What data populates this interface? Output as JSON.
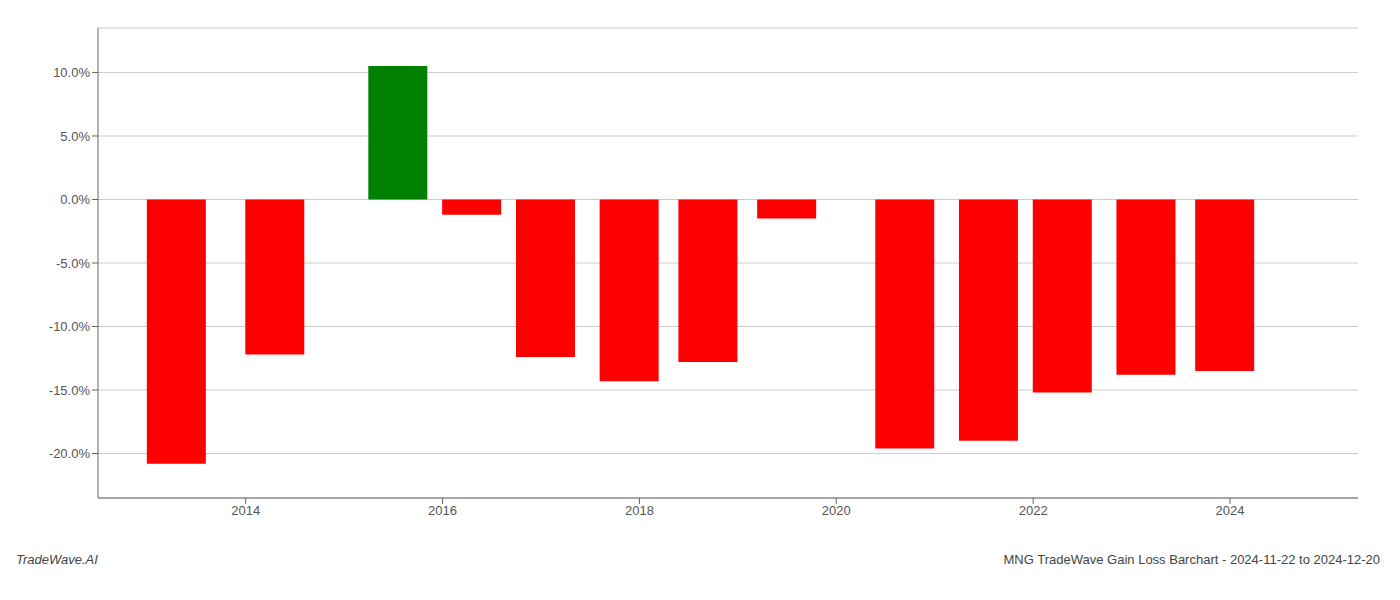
{
  "chart_data": {
    "type": "bar",
    "x": [
      2013.3,
      2014.3,
      2015.55,
      2016.3,
      2017.05,
      2017.9,
      2018.7,
      2019.5,
      2020.7,
      2021.55,
      2022.3,
      2023.15,
      2023.95
    ],
    "values": [
      -0.208,
      -0.122,
      0.105,
      -0.012,
      -0.124,
      -0.143,
      -0.128,
      -0.015,
      -0.196,
      -0.19,
      -0.152,
      -0.138,
      -0.135
    ],
    "colors": [
      "#ff0000",
      "#ff0000",
      "#008000",
      "#ff0000",
      "#ff0000",
      "#ff0000",
      "#ff0000",
      "#ff0000",
      "#ff0000",
      "#ff0000",
      "#ff0000",
      "#ff0000",
      "#ff0000"
    ],
    "xlim": [
      2012.5,
      2025.3
    ],
    "xticks": [
      2014,
      2016,
      2018,
      2020,
      2022,
      2024
    ],
    "ylim": [
      -0.235,
      0.135
    ],
    "yticks": [
      {
        "value": -0.2,
        "label": "-20.0%"
      },
      {
        "value": -0.15,
        "label": "-15.0%"
      },
      {
        "value": -0.1,
        "label": "-10.0%"
      },
      {
        "value": -0.05,
        "label": "-5.0%"
      },
      {
        "value": 0.0,
        "label": "0.0%"
      },
      {
        "value": 0.05,
        "label": "5.0%"
      },
      {
        "value": 0.1,
        "label": "10.0%"
      }
    ],
    "grid": true,
    "annotations": [
      "TradeWave.AI",
      "MNG TradeWave Gain Loss Barchart - 2024-11-22 to 2024-12-20"
    ]
  }
}
